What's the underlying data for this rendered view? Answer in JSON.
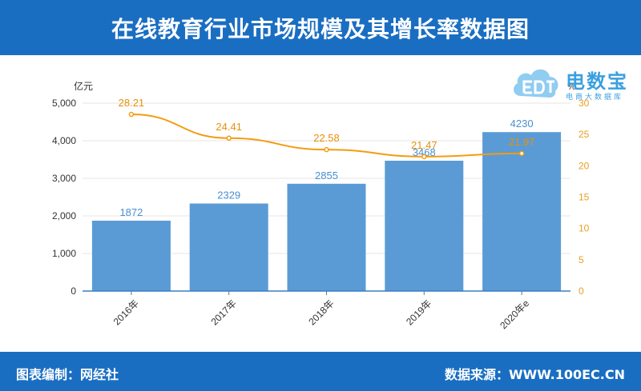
{
  "header": {
    "title": "在线教育行业市场规模及其增长率数据图"
  },
  "footer": {
    "left": "图表编制：网经社",
    "right": "数据来源：WWW.100EC.CN"
  },
  "logo": {
    "brand": "电数宝",
    "sub": "电商大数据库",
    "icon": "cloud-edt-icon"
  },
  "colors": {
    "bar": "#5b9bd5",
    "line": "#f39c12",
    "header": "#1a6ec2"
  },
  "chart_data": {
    "type": "bar",
    "categories": [
      "2016年",
      "2017年",
      "2018年",
      "2019年",
      "2020年e"
    ],
    "series": [
      {
        "type": "bar",
        "axis": "left",
        "values": [
          1872,
          2329,
          2855,
          3468,
          4230
        ]
      },
      {
        "type": "line",
        "axis": "right",
        "values": [
          28.21,
          24.41,
          22.58,
          21.47,
          21.97
        ]
      }
    ],
    "bar_labels": [
      "1872",
      "2329",
      "2855",
      "3468",
      "4230"
    ],
    "line_labels": [
      "28.21",
      "24.41",
      "22.58",
      "21.47",
      "21.97"
    ],
    "ylabel": "亿元",
    "ylabel_right": "%",
    "ylim": [
      0,
      5000
    ],
    "ylim_right": [
      0,
      30
    ],
    "yticks": [
      "0",
      "1,000",
      "2,000",
      "3,000",
      "4,000",
      "5,000"
    ],
    "yticks_right": [
      "0",
      "5",
      "10",
      "15",
      "20",
      "25",
      "30"
    ],
    "grid": true
  }
}
